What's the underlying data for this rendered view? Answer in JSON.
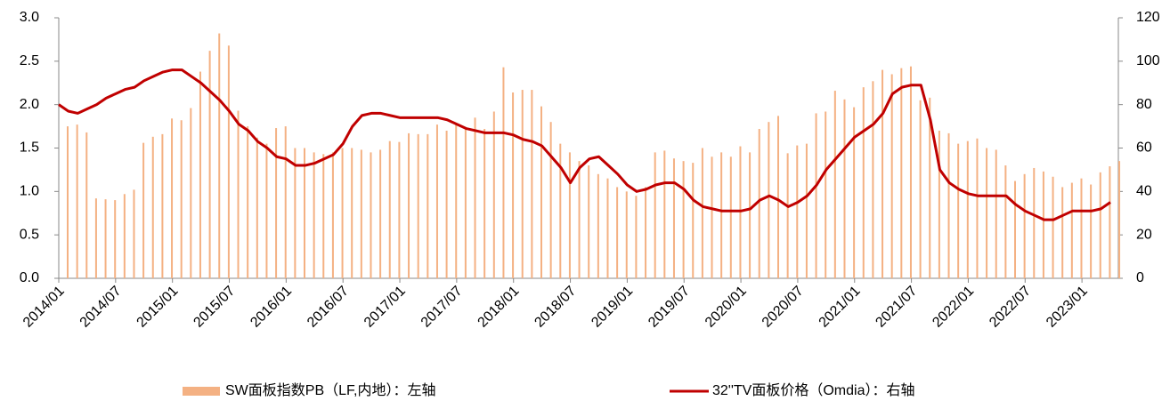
{
  "chart_data": {
    "type": "bar_line",
    "categories": [
      "2014/01",
      null,
      null,
      null,
      null,
      null,
      "2014/07",
      null,
      null,
      null,
      null,
      null,
      "2015/01",
      null,
      null,
      null,
      null,
      null,
      "2015/07",
      null,
      null,
      null,
      null,
      null,
      "2016/01",
      null,
      null,
      null,
      null,
      null,
      "2016/07",
      null,
      null,
      null,
      null,
      null,
      "2017/01",
      null,
      null,
      null,
      null,
      null,
      "2017/07",
      null,
      null,
      null,
      null,
      null,
      "2018/01",
      null,
      null,
      null,
      null,
      null,
      "2018/07",
      null,
      null,
      null,
      null,
      null,
      "2019/01",
      null,
      null,
      null,
      null,
      null,
      "2019/07",
      null,
      null,
      null,
      null,
      null,
      "2020/01",
      null,
      null,
      null,
      null,
      null,
      "2020/07",
      null,
      null,
      null,
      null,
      null,
      "2021/01",
      null,
      null,
      null,
      null,
      null,
      "2021/07",
      null,
      null,
      null,
      null,
      null,
      "2022/01",
      null,
      null,
      null,
      null,
      null,
      "2022/07",
      null,
      null,
      null,
      null,
      null,
      "2023/01",
      null,
      null,
      null
    ],
    "series": [
      {
        "name": "SW面板指数PB（LF,内地）：左轴",
        "type": "bar",
        "color": "#f4b183",
        "values": [
          1.75,
          1.77,
          1.68,
          0.92,
          0.91,
          0.9,
          0.97,
          1.02,
          1.56,
          1.63,
          1.66,
          1.84,
          1.82,
          1.96,
          2.38,
          2.62,
          2.82,
          2.68,
          1.93,
          1.75,
          1.62,
          1.55,
          1.73,
          1.75,
          1.5,
          1.5,
          1.45,
          1.43,
          1.45,
          1.5,
          1.5,
          1.48,
          1.45,
          1.48,
          1.58,
          1.57,
          1.67,
          1.66,
          1.66,
          1.77,
          1.7,
          1.78,
          1.72,
          1.85,
          1.72,
          1.92,
          2.43,
          2.14,
          2.17,
          2.17,
          1.98,
          1.8,
          1.55,
          1.45,
          1.35,
          1.3,
          1.2,
          1.15,
          1.05,
          1.0,
          0.95,
          1.05,
          1.45,
          1.47,
          1.38,
          1.35,
          1.33,
          1.5,
          1.4,
          1.45,
          1.4,
          1.52,
          1.45,
          1.72,
          1.8,
          1.87,
          1.44,
          1.53,
          1.55,
          1.9,
          1.92,
          2.16,
          2.06,
          1.97,
          2.2,
          2.27,
          2.4,
          2.35,
          2.42,
          2.44,
          2.05,
          2.08,
          1.7,
          1.67,
          1.55,
          1.58,
          1.61,
          1.5,
          1.48,
          1.3,
          1.12,
          1.2,
          1.27,
          1.23,
          1.17,
          1.05,
          1.1,
          1.15,
          1.08,
          1.22,
          1.29,
          1.35
        ]
      },
      {
        "name": "32''TV面板价格（Omdia）：右轴",
        "type": "line",
        "axis": "y2",
        "color": "#c00000",
        "values": [
          80,
          77,
          76,
          78,
          80,
          83,
          85,
          87,
          88,
          91,
          93,
          95,
          96,
          96,
          93,
          90,
          86,
          82,
          77,
          71,
          68,
          63,
          60,
          56,
          55,
          52,
          52,
          53,
          55,
          57,
          62,
          70,
          75,
          76,
          76,
          75,
          74,
          74,
          74,
          74,
          74,
          73,
          71,
          69,
          68,
          67,
          67,
          67,
          66,
          64,
          63,
          61,
          56,
          51,
          44,
          51,
          55,
          56,
          52,
          48,
          43,
          40,
          41,
          43,
          44,
          44,
          41,
          36,
          33,
          32,
          31,
          31,
          31,
          32,
          36,
          38,
          36,
          33,
          35,
          38,
          43,
          50,
          55,
          60,
          65,
          68,
          71,
          76,
          85,
          88,
          89,
          89,
          73,
          50,
          44,
          41,
          39,
          38,
          38,
          38,
          38,
          34,
          31,
          29,
          27,
          27,
          29,
          31,
          31,
          31,
          32,
          35
        ]
      }
    ],
    "ylim": [
      0,
      3.0
    ],
    "yticks": [
      {
        "value": 0,
        "label": "0.0"
      },
      0.5,
      {
        "value": 1,
        "label": "1.0"
      },
      1.5,
      {
        "value": 2,
        "label": "2.0"
      },
      2.5,
      {
        "value": 3,
        "label": "3.0"
      }
    ],
    "y2lim": [
      0,
      120
    ],
    "y2ticks": [
      0,
      20,
      40,
      60,
      80,
      100,
      120
    ],
    "legend": "bottom"
  }
}
